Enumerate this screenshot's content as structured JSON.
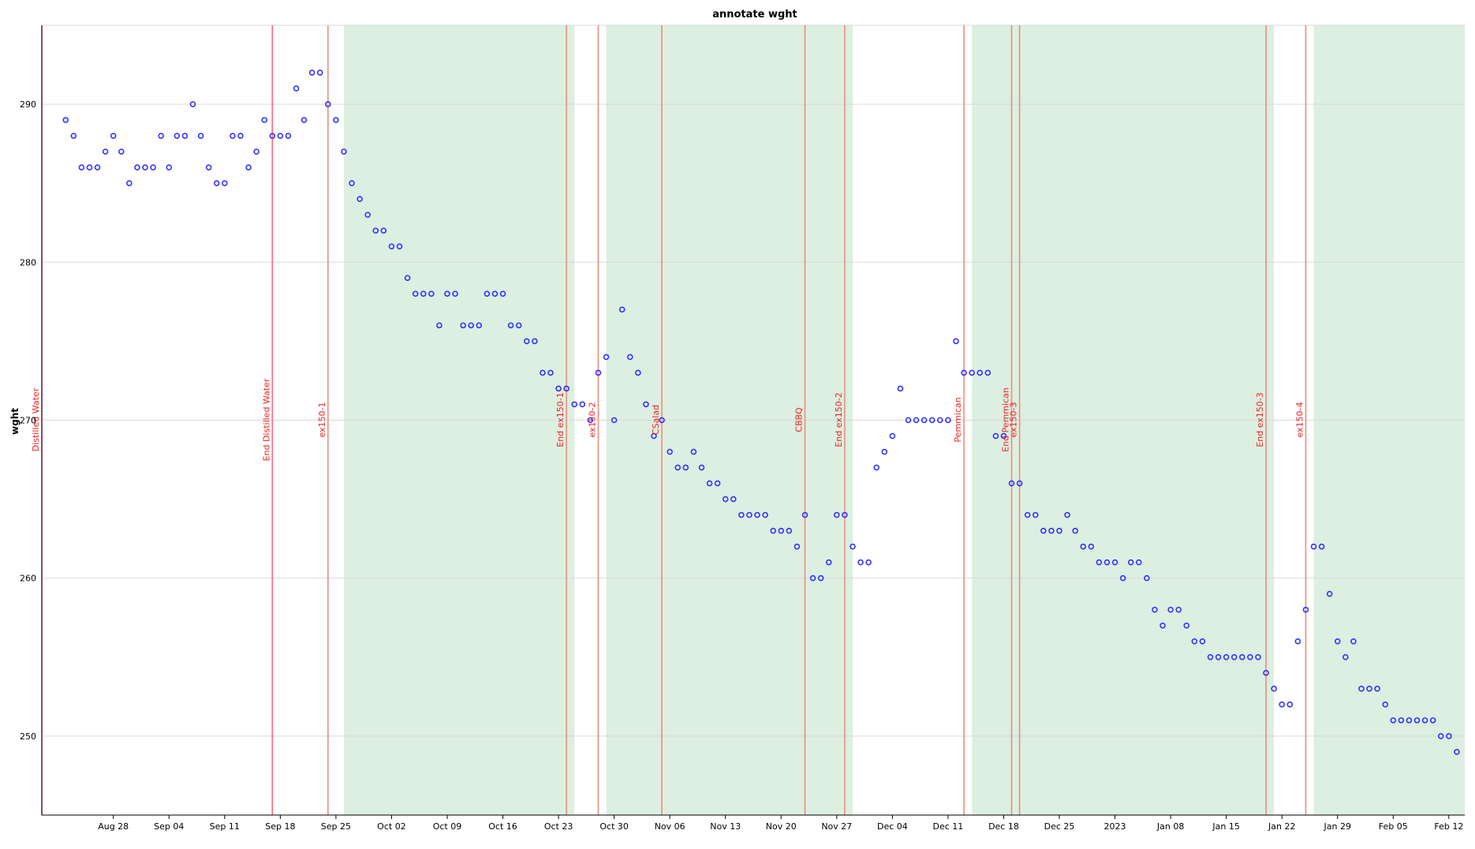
{
  "chart_data": {
    "type": "scatter",
    "title": "annotate wght",
    "ylabel": "wght",
    "xlabel": "",
    "xlim": [
      "2022-08-19",
      "2023-02-14"
    ],
    "ylim": [
      245,
      295
    ],
    "grid": "y",
    "legend": "none",
    "colors": {
      "point": "#3333ff",
      "band": "#dcefe1",
      "line_primary": "#ff6680",
      "line_secondary": "#e8907a",
      "annotation_text": "#ee2222",
      "grid": "#d9d9d9"
    },
    "yticks": [
      250,
      260,
      270,
      280,
      290
    ],
    "xticks": [
      {
        "date": "2022-08-28",
        "label": "Aug 28"
      },
      {
        "date": "2022-09-04",
        "label": "Sep 04"
      },
      {
        "date": "2022-09-11",
        "label": "Sep 11"
      },
      {
        "date": "2022-09-18",
        "label": "Sep 18"
      },
      {
        "date": "2022-09-25",
        "label": "Sep 25"
      },
      {
        "date": "2022-10-02",
        "label": "Oct 02"
      },
      {
        "date": "2022-10-09",
        "label": "Oct 09"
      },
      {
        "date": "2022-10-16",
        "label": "Oct 16"
      },
      {
        "date": "2022-10-23",
        "label": "Oct 23"
      },
      {
        "date": "2022-10-30",
        "label": "Oct 30"
      },
      {
        "date": "2022-11-06",
        "label": "Nov 06"
      },
      {
        "date": "2022-11-13",
        "label": "Nov 13"
      },
      {
        "date": "2022-11-20",
        "label": "Nov 20"
      },
      {
        "date": "2022-11-27",
        "label": "Nov 27"
      },
      {
        "date": "2022-12-04",
        "label": "Dec 04"
      },
      {
        "date": "2022-12-11",
        "label": "Dec 11"
      },
      {
        "date": "2022-12-18",
        "label": "Dec 18"
      },
      {
        "date": "2022-12-25",
        "label": "Dec 25"
      },
      {
        "date": "2023-01-01",
        "label": "2023"
      },
      {
        "date": "2023-01-08",
        "label": "Jan 08"
      },
      {
        "date": "2023-01-15",
        "label": "Jan 15"
      },
      {
        "date": "2023-01-22",
        "label": "Jan 22"
      },
      {
        "date": "2023-01-29",
        "label": "Jan 29"
      },
      {
        "date": "2023-02-05",
        "label": "Feb 05"
      },
      {
        "date": "2023-02-12",
        "label": "Feb 12"
      }
    ],
    "bands": [
      {
        "start": "2022-09-26",
        "end": "2022-10-25"
      },
      {
        "start": "2022-10-29",
        "end": "2022-11-29"
      },
      {
        "start": "2022-12-14",
        "end": "2023-01-21"
      },
      {
        "start": "2023-01-26",
        "end": "2023-02-14"
      }
    ],
    "annotations": [
      {
        "date": "2022-08-19",
        "label": "Distilled Water",
        "style": "primary"
      },
      {
        "date": "2022-09-17",
        "label": "End Distilled Water",
        "style": "primary"
      },
      {
        "date": "2022-09-24",
        "label": "ex150-1",
        "style": "secondary"
      },
      {
        "date": "2022-10-24",
        "label": "End ex150-1",
        "style": "secondary"
      },
      {
        "date": "2022-10-28",
        "label": "ex150-2",
        "style": "secondary"
      },
      {
        "date": "2022-11-05",
        "label": "CSalad",
        "style": "secondary"
      },
      {
        "date": "2022-11-23",
        "label": "CBBQ",
        "style": "secondary"
      },
      {
        "date": "2022-11-28",
        "label": "End ex150-2",
        "style": "secondary"
      },
      {
        "date": "2022-12-13",
        "label": "Pemmican",
        "style": "secondary"
      },
      {
        "date": "2022-12-19",
        "label": "End Pemmican",
        "style": "secondary"
      },
      {
        "date": "2022-12-20",
        "label": "ex150-3",
        "style": "secondary"
      },
      {
        "date": "2023-01-20",
        "label": "End ex150-3",
        "style": "secondary"
      },
      {
        "date": "2023-01-25",
        "label": "ex150-4",
        "style": "secondary"
      }
    ],
    "start": "2022-08-22",
    "values": [
      289,
      288,
      286,
      286,
      286,
      287,
      288,
      287,
      285,
      286,
      286,
      286,
      288,
      286,
      288,
      288,
      290,
      288,
      286,
      285,
      285,
      288,
      288,
      286,
      287,
      289,
      288,
      288,
      288,
      291,
      289,
      292,
      292,
      290,
      289,
      287,
      285,
      284,
      283,
      282,
      282,
      281,
      281,
      279,
      278,
      278,
      278,
      276,
      278,
      278,
      276,
      276,
      276,
      278,
      278,
      278,
      276,
      276,
      275,
      275,
      273,
      273,
      272,
      272,
      271,
      271,
      270,
      273,
      274,
      270,
      277,
      274,
      273,
      271,
      269,
      270,
      268,
      267,
      267,
      268,
      267,
      266,
      266,
      265,
      265,
      264,
      264,
      264,
      264,
      263,
      263,
      263,
      262,
      264,
      260,
      260,
      261,
      264,
      264,
      262,
      261,
      261,
      267,
      268,
      269,
      272,
      270,
      270,
      270,
      270,
      270,
      270,
      275,
      273,
      273,
      273,
      273,
      269,
      269,
      266,
      266,
      264,
      264,
      263,
      263,
      263,
      264,
      263,
      262,
      262,
      261,
      261,
      261,
      260,
      261,
      261,
      260,
      258,
      257,
      258,
      258,
      257,
      256,
      256,
      255,
      255,
      255,
      255,
      255,
      255,
      255,
      254,
      253,
      252,
      252,
      256,
      258,
      262,
      262,
      259,
      256,
      255,
      256,
      253,
      253,
      253,
      252,
      251,
      251,
      251,
      251,
      251,
      251,
      250,
      250,
      249
    ]
  }
}
